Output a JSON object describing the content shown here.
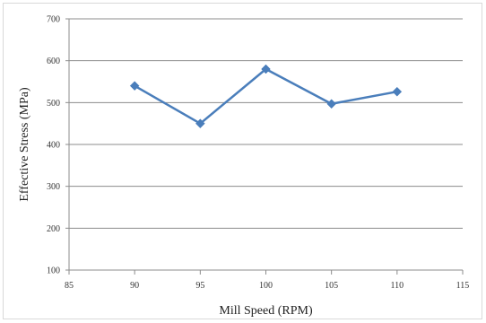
{
  "chart_data": {
    "type": "line",
    "title": "",
    "xlabel": "Mill Speed (RPM)",
    "ylabel": "Effective Stress (MPa)",
    "xlim": [
      85,
      115
    ],
    "ylim": [
      100,
      700
    ],
    "xticks": [
      "85",
      "90",
      "95",
      "100",
      "105",
      "110",
      "115"
    ],
    "yticks": [
      "100",
      "200",
      "300",
      "400",
      "500",
      "600",
      "700"
    ],
    "grid": "horizontal",
    "legend": "none",
    "series": [
      {
        "x": [
          90,
          95,
          100,
          105,
          110
        ],
        "values": [
          540,
          450,
          580,
          497,
          526
        ],
        "color": "#4a7ebb",
        "marker": "diamond"
      }
    ]
  }
}
